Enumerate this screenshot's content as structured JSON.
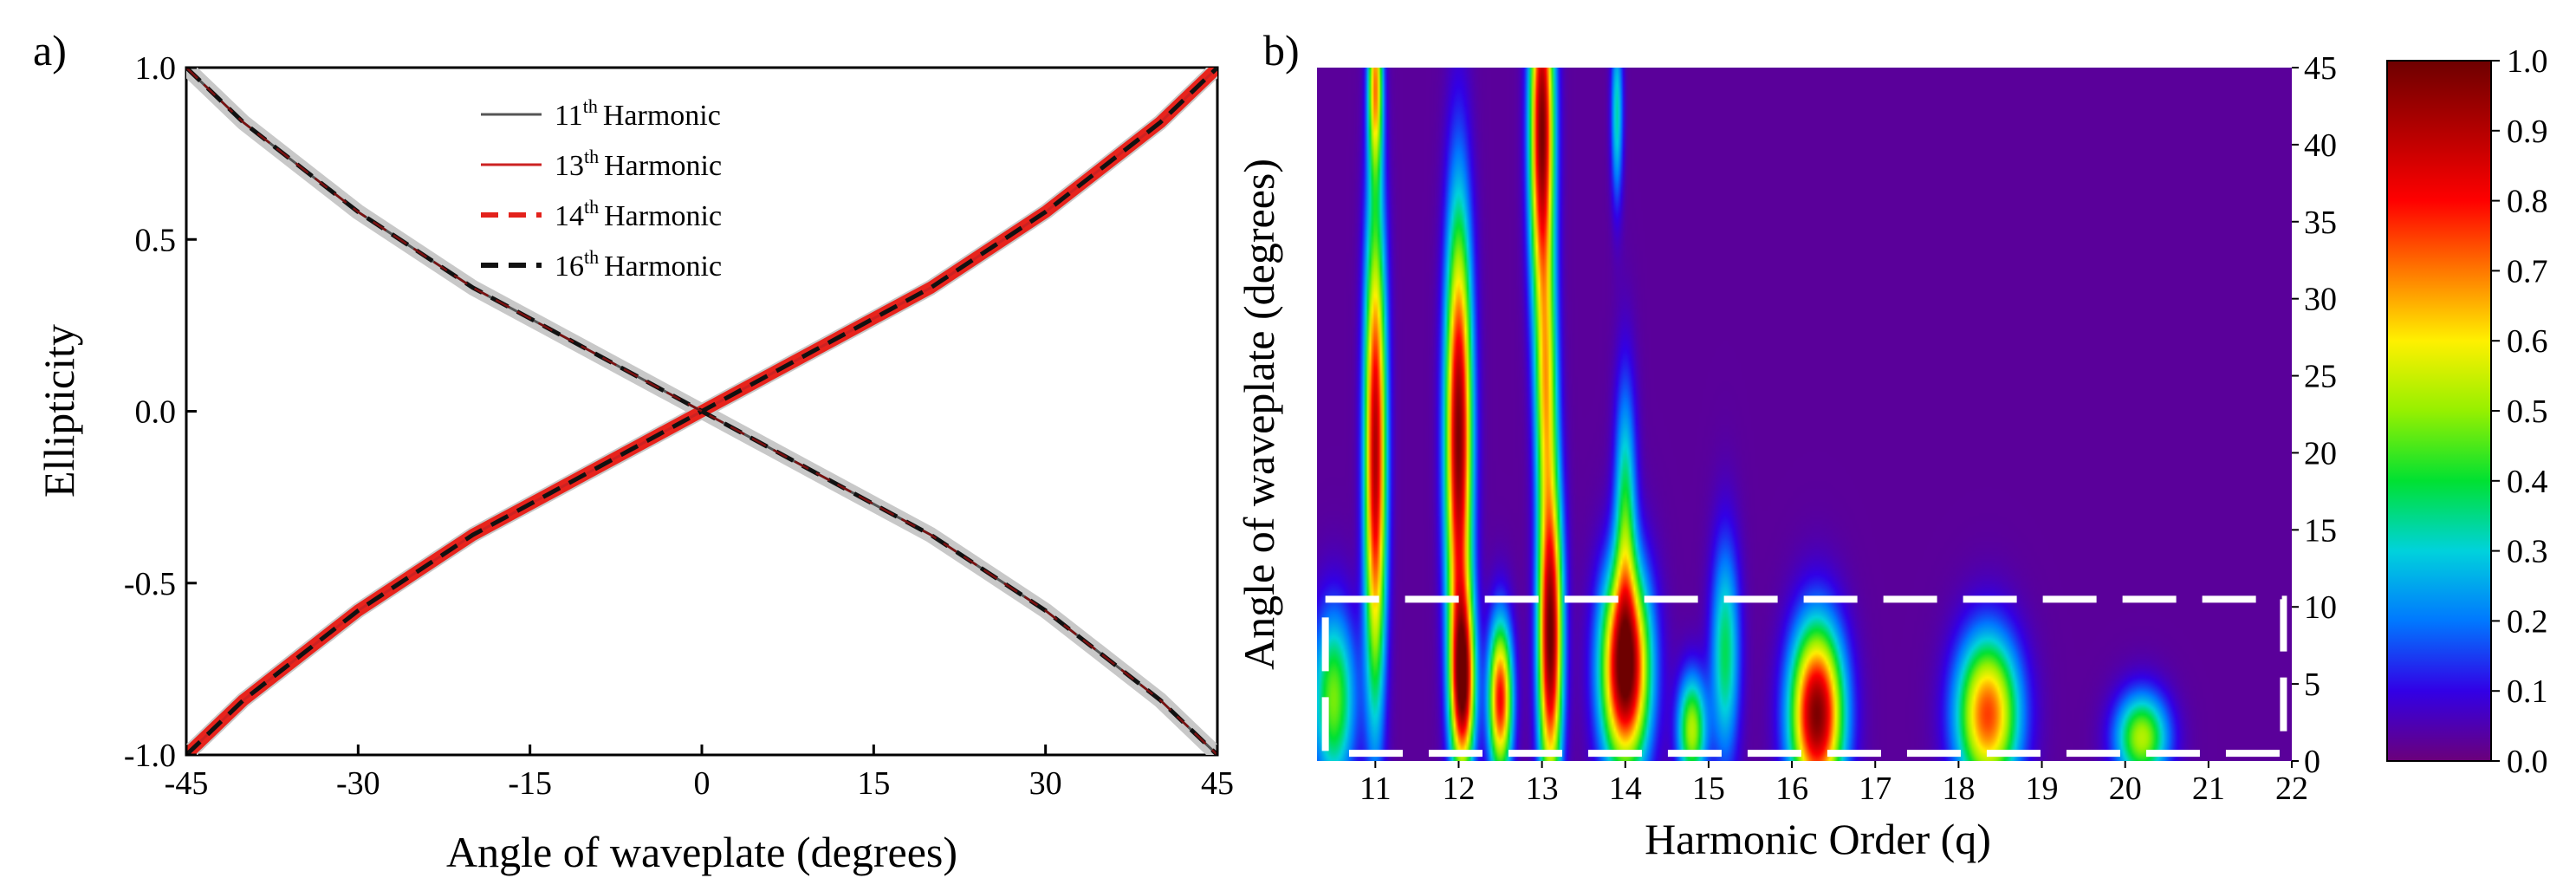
{
  "panel_a_label": "a)",
  "panel_b_label": "b)",
  "chart_data": [
    {
      "type": "line",
      "panel": "a)",
      "xlabel": "Angle of waveplate (degrees)",
      "ylabel": "Ellipticity",
      "xlim": [
        -45,
        45
      ],
      "ylim": [
        -1.0,
        1.0
      ],
      "x_ticks": [
        "-45",
        "-30",
        "-15",
        "0",
        "15",
        "30",
        "45"
      ],
      "y_ticks": [
        "-1.0",
        "-0.5",
        "0.0",
        "0.5",
        "1.0"
      ],
      "legend_position": "top-center",
      "x": [
        -45,
        -40,
        -35,
        -30,
        -25,
        -20,
        -15,
        -10,
        -5,
        0,
        5,
        10,
        15,
        20,
        25,
        30,
        35,
        40,
        45
      ],
      "series": [
        {
          "name": "11th Harmonic",
          "num": "11",
          "sup": "th",
          "label": "Harmonic",
          "style": "solid-thin",
          "color": "#555555",
          "direction": "decreasing",
          "values": [
            1.0,
            0.84,
            0.71,
            0.58,
            0.47,
            0.36,
            0.27,
            0.18,
            0.09,
            0.0,
            -0.09,
            -0.18,
            -0.27,
            -0.36,
            -0.47,
            -0.58,
            -0.71,
            -0.84,
            -1.0
          ]
        },
        {
          "name": "13th Harmonic",
          "num": "13",
          "sup": "th",
          "label": "Harmonic",
          "style": "solid-thin",
          "color": "#cc2222",
          "direction": "increasing",
          "values": [
            -1.0,
            -0.84,
            -0.71,
            -0.58,
            -0.47,
            -0.36,
            -0.27,
            -0.18,
            -0.09,
            0.0,
            0.09,
            0.18,
            0.27,
            0.36,
            0.47,
            0.58,
            0.71,
            0.84,
            1.0
          ]
        },
        {
          "name": "14th Harmonic",
          "num": "14",
          "sup": "th",
          "label": "Harmonic",
          "style": "dashed",
          "color": "#e3221c",
          "direction": "increasing",
          "values": [
            -1.0,
            -0.84,
            -0.71,
            -0.58,
            -0.47,
            -0.36,
            -0.27,
            -0.18,
            -0.09,
            0.0,
            0.09,
            0.18,
            0.27,
            0.36,
            0.47,
            0.58,
            0.71,
            0.84,
            1.0
          ]
        },
        {
          "name": "16th Harmonic",
          "num": "16",
          "sup": "th",
          "label": "Harmonic",
          "style": "dashed",
          "color": "#111111",
          "direction": "both",
          "values": [
            -1.0,
            -0.84,
            -0.71,
            -0.58,
            -0.47,
            -0.36,
            -0.27,
            -0.18,
            -0.09,
            0.0,
            0.09,
            0.18,
            0.27,
            0.36,
            0.47,
            0.58,
            0.71,
            0.84,
            1.0
          ]
        }
      ]
    },
    {
      "type": "heatmap",
      "panel": "b)",
      "xlabel": "Harmonic Order (q)",
      "ylabel": "Angle of waveplate (degrees)",
      "xlim": [
        10.3,
        22.0
      ],
      "ylim": [
        0,
        45
      ],
      "x_ticks": [
        "11",
        "12",
        "13",
        "14",
        "15",
        "16",
        "17",
        "18",
        "19",
        "20",
        "21",
        "22"
      ],
      "y_ticks": [
        "0",
        "5",
        "10",
        "15",
        "20",
        "25",
        "30",
        "35",
        "40",
        "45"
      ],
      "colorbar_ticks": [
        "0.0",
        "0.1",
        "0.2",
        "0.3",
        "0.4",
        "0.5",
        "0.6",
        "0.7",
        "0.8",
        "0.9",
        "1.0"
      ],
      "colorbar_range": [
        0.0,
        1.0
      ],
      "background_value": 0.03,
      "highlight_box": {
        "x_range": [
          10.4,
          21.9
        ],
        "y_range": [
          0.5,
          10.5
        ],
        "style": "white-dashed"
      },
      "peaks": [
        {
          "q": 10.5,
          "angle": 4,
          "amp": 0.45,
          "sq": 0.18,
          "sa": 4
        },
        {
          "q": 11.0,
          "angle": 20,
          "amp": 0.88,
          "sq": 0.09,
          "sa": 11
        },
        {
          "q": 11.0,
          "angle": 44,
          "amp": 0.6,
          "sq": 0.06,
          "sa": 4
        },
        {
          "q": 12.0,
          "angle": 21,
          "amp": 0.95,
          "sq": 0.11,
          "sa": 10
        },
        {
          "q": 12.05,
          "angle": 5,
          "amp": 0.85,
          "sq": 0.1,
          "sa": 4
        },
        {
          "q": 12.5,
          "angle": 4,
          "amp": 0.78,
          "sq": 0.1,
          "sa": 3.5
        },
        {
          "q": 13.0,
          "angle": 41,
          "amp": 0.95,
          "sq": 0.1,
          "sa": 8
        },
        {
          "q": 13.1,
          "angle": 8,
          "amp": 0.97,
          "sq": 0.1,
          "sa": 7
        },
        {
          "q": 13.05,
          "angle": 24,
          "amp": 0.5,
          "sq": 0.09,
          "sa": 6
        },
        {
          "q": 14.0,
          "angle": 6,
          "amp": 1.0,
          "sq": 0.2,
          "sa": 4.5
        },
        {
          "q": 14.0,
          "angle": 16,
          "amp": 0.35,
          "sq": 0.09,
          "sa": 6
        },
        {
          "q": 13.9,
          "angle": 42,
          "amp": 0.3,
          "sq": 0.05,
          "sa": 4
        },
        {
          "q": 14.8,
          "angle": 2,
          "amp": 0.5,
          "sq": 0.12,
          "sa": 2.5
        },
        {
          "q": 15.2,
          "angle": 7,
          "amp": 0.35,
          "sq": 0.12,
          "sa": 5
        },
        {
          "q": 16.3,
          "angle": 3,
          "amp": 0.95,
          "sq": 0.22,
          "sa": 4
        },
        {
          "q": 18.35,
          "angle": 3,
          "amp": 0.72,
          "sq": 0.26,
          "sa": 3.5
        },
        {
          "q": 20.2,
          "angle": 1.5,
          "amp": 0.5,
          "sq": 0.22,
          "sa": 2
        }
      ]
    }
  ]
}
